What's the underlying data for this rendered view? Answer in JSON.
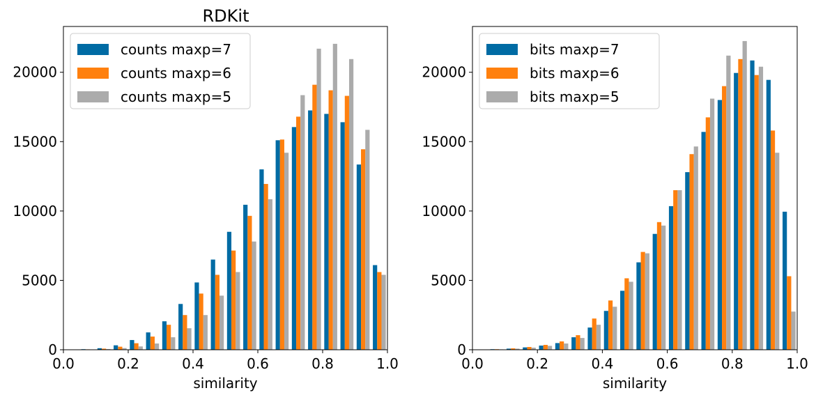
{
  "chart_data": [
    {
      "type": "bar",
      "title": "RDKit",
      "xlabel": "similarity",
      "ylabel": "",
      "xlim": [
        0.0,
        1.0
      ],
      "ylim": [
        0,
        23300
      ],
      "x_ticks": [
        "0.0",
        "0.2",
        "0.4",
        "0.6",
        "0.8",
        "1.0"
      ],
      "y_ticks": [
        "0",
        "5000",
        "10000",
        "15000",
        "20000"
      ],
      "legend_position": "top-left",
      "grid": false,
      "bin_centers": [
        0.025,
        0.075,
        0.125,
        0.175,
        0.225,
        0.275,
        0.325,
        0.375,
        0.425,
        0.475,
        0.525,
        0.575,
        0.625,
        0.675,
        0.725,
        0.775,
        0.825,
        0.875,
        0.925,
        0.975
      ],
      "series": [
        {
          "name": "counts maxp=7",
          "color": "#006BA4",
          "values": [
            20,
            40,
            110,
            320,
            700,
            1250,
            2050,
            3300,
            4850,
            6500,
            8500,
            10450,
            13000,
            15100,
            16050,
            17250,
            17000,
            16400,
            13350,
            6100
          ]
        },
        {
          "name": "counts maxp=6",
          "color": "#FF800E",
          "values": [
            15,
            30,
            80,
            220,
            470,
            950,
            1800,
            2500,
            4050,
            5400,
            7150,
            9650,
            11950,
            15150,
            16800,
            19100,
            18700,
            18300,
            14450,
            5600
          ]
        },
        {
          "name": "counts maxp=5",
          "color": "#ABABAB",
          "values": [
            10,
            20,
            50,
            120,
            240,
            450,
            900,
            1550,
            2500,
            3900,
            5600,
            7800,
            10850,
            14200,
            18350,
            21700,
            22050,
            20950,
            15850,
            5400
          ]
        }
      ]
    },
    {
      "type": "bar",
      "title": "",
      "xlabel": "similarity",
      "ylabel": "",
      "xlim": [
        0.0,
        1.0
      ],
      "ylim": [
        0,
        23300
      ],
      "x_ticks": [
        "0.0",
        "0.2",
        "0.4",
        "0.6",
        "0.8",
        "1.0"
      ],
      "y_ticks": [
        "0",
        "5000",
        "10000",
        "15000",
        "20000"
      ],
      "legend_position": "top-left",
      "grid": false,
      "bin_centers": [
        0.025,
        0.075,
        0.125,
        0.175,
        0.225,
        0.275,
        0.325,
        0.375,
        0.425,
        0.475,
        0.525,
        0.575,
        0.625,
        0.675,
        0.725,
        0.775,
        0.825,
        0.875,
        0.925,
        0.975
      ],
      "series": [
        {
          "name": "bits maxp=7",
          "color": "#006BA4",
          "values": [
            20,
            40,
            80,
            170,
            300,
            480,
            900,
            1600,
            2800,
            4250,
            6300,
            8350,
            10350,
            12800,
            15700,
            18000,
            19950,
            20850,
            19450,
            9950
          ]
        },
        {
          "name": "bits maxp=6",
          "color": "#FF800E",
          "values": [
            20,
            40,
            100,
            200,
            350,
            600,
            1050,
            2250,
            3550,
            5150,
            7050,
            9200,
            11500,
            14100,
            16750,
            19000,
            20950,
            19800,
            15800,
            5300
          ]
        },
        {
          "name": "bits maxp=5",
          "color": "#ABABAB",
          "values": [
            20,
            30,
            80,
            150,
            280,
            450,
            850,
            1800,
            3100,
            4900,
            6950,
            8950,
            11500,
            14650,
            18100,
            21200,
            22250,
            20400,
            14200,
            2750
          ]
        }
      ]
    }
  ]
}
